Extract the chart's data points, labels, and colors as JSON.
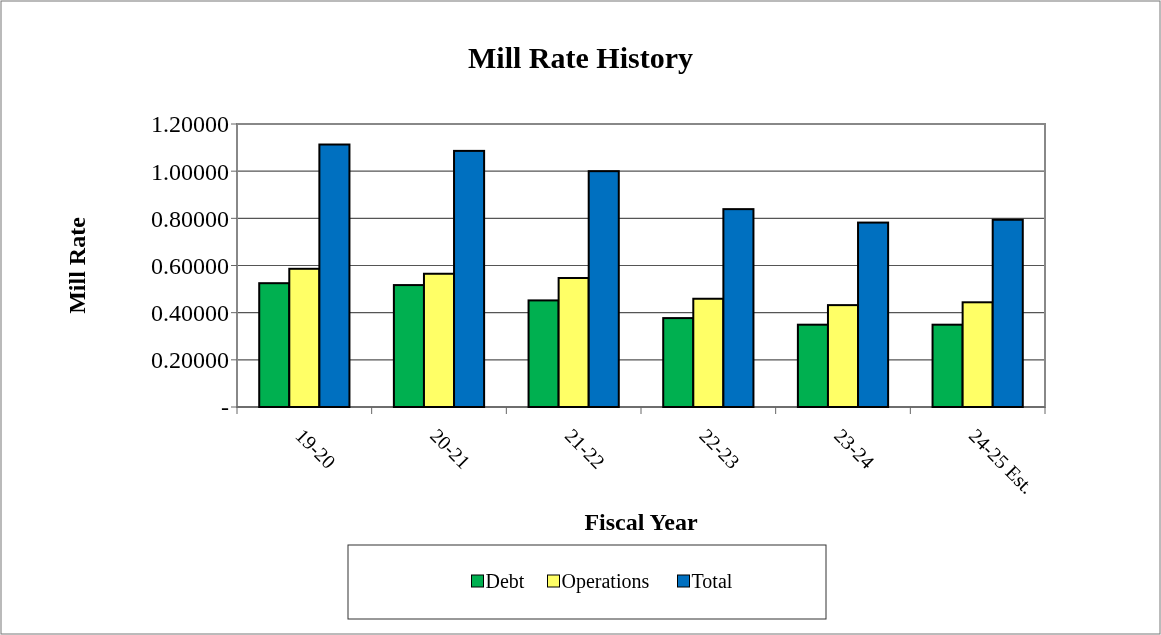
{
  "chart_data": {
    "type": "bar",
    "title": "Mill Rate History",
    "xlabel": "Fiscal Year",
    "ylabel": "Mill Rate",
    "categories": [
      "19-20",
      "20-21",
      "21-22",
      "22-23",
      "23-24",
      "24-25 Est."
    ],
    "series": [
      {
        "name": "Debt",
        "color": "#00b050",
        "values": [
          0.525,
          0.517,
          0.452,
          0.377,
          0.349,
          0.349
        ]
      },
      {
        "name": "Operations",
        "color": "#ffff66",
        "values": [
          0.586,
          0.565,
          0.547,
          0.459,
          0.432,
          0.444
        ]
      },
      {
        "name": "Total",
        "color": "#0070c0",
        "values": [
          1.113,
          1.086,
          1.0,
          0.839,
          0.782,
          0.794
        ]
      }
    ],
    "ylim": [
      0,
      1.2
    ],
    "yticks": [
      {
        "value": 0,
        "label": "-"
      },
      {
        "value": 0.2,
        "label": "0.20000"
      },
      {
        "value": 0.4,
        "label": "0.40000"
      },
      {
        "value": 0.6,
        "label": "0.60000"
      },
      {
        "value": 0.8,
        "label": "0.80000"
      },
      {
        "value": 1.0,
        "label": "1.00000"
      },
      {
        "value": 1.2,
        "label": "1.20000"
      }
    ],
    "grid": "y",
    "legend": "bottom"
  }
}
